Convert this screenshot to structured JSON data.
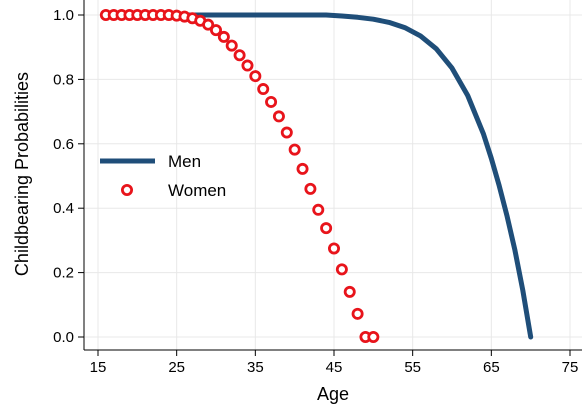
{
  "chart_data": {
    "type": "line",
    "title": "",
    "xlabel": "Age",
    "ylabel": "Childbearing Probabilities",
    "xlim": [
      15,
      76
    ],
    "ylim": [
      0,
      1
    ],
    "x_ticks": [
      "15",
      "25",
      "35",
      "45",
      "55",
      "65",
      "75"
    ],
    "y_ticks": [
      "0.0",
      "0.2",
      "0.4",
      "0.6",
      "0.8",
      "1.0"
    ],
    "grid": true,
    "legend_position": "left",
    "series": [
      {
        "name": "Men",
        "style": "line",
        "color": "#1f4e79",
        "points": [
          [
            16,
            1.0
          ],
          [
            20,
            1.0
          ],
          [
            25,
            1.0
          ],
          [
            30,
            1.0
          ],
          [
            35,
            1.0
          ],
          [
            40,
            1.0
          ],
          [
            44,
            1.0
          ],
          [
            46,
            0.997
          ],
          [
            48,
            0.993
          ],
          [
            50,
            0.987
          ],
          [
            52,
            0.977
          ],
          [
            54,
            0.961
          ],
          [
            56,
            0.935
          ],
          [
            58,
            0.895
          ],
          [
            60,
            0.835
          ],
          [
            62,
            0.75
          ],
          [
            64,
            0.63
          ],
          [
            65,
            0.555
          ],
          [
            66,
            0.47
          ],
          [
            67,
            0.375
          ],
          [
            68,
            0.27
          ],
          [
            69,
            0.145
          ],
          [
            70,
            0.0
          ]
        ]
      },
      {
        "name": "Women",
        "style": "markers",
        "color": "#e8141b",
        "x": [
          16,
          17,
          18,
          19,
          20,
          21,
          22,
          23,
          24,
          25,
          26,
          27,
          28,
          29,
          30,
          31,
          32,
          33,
          34,
          35,
          36,
          37,
          38,
          39,
          40,
          41,
          42,
          43,
          44,
          45,
          46,
          47,
          48,
          49,
          50
        ],
        "values": [
          1.0,
          1.0,
          1.0,
          1.0,
          1.0,
          1.0,
          1.0,
          1.0,
          1.0,
          0.998,
          0.995,
          0.99,
          0.982,
          0.97,
          0.953,
          0.932,
          0.905,
          0.875,
          0.843,
          0.81,
          0.77,
          0.73,
          0.685,
          0.635,
          0.582,
          0.522,
          0.46,
          0.395,
          0.338,
          0.275,
          0.21,
          0.14,
          0.072,
          0.0,
          0.0
        ]
      }
    ]
  }
}
